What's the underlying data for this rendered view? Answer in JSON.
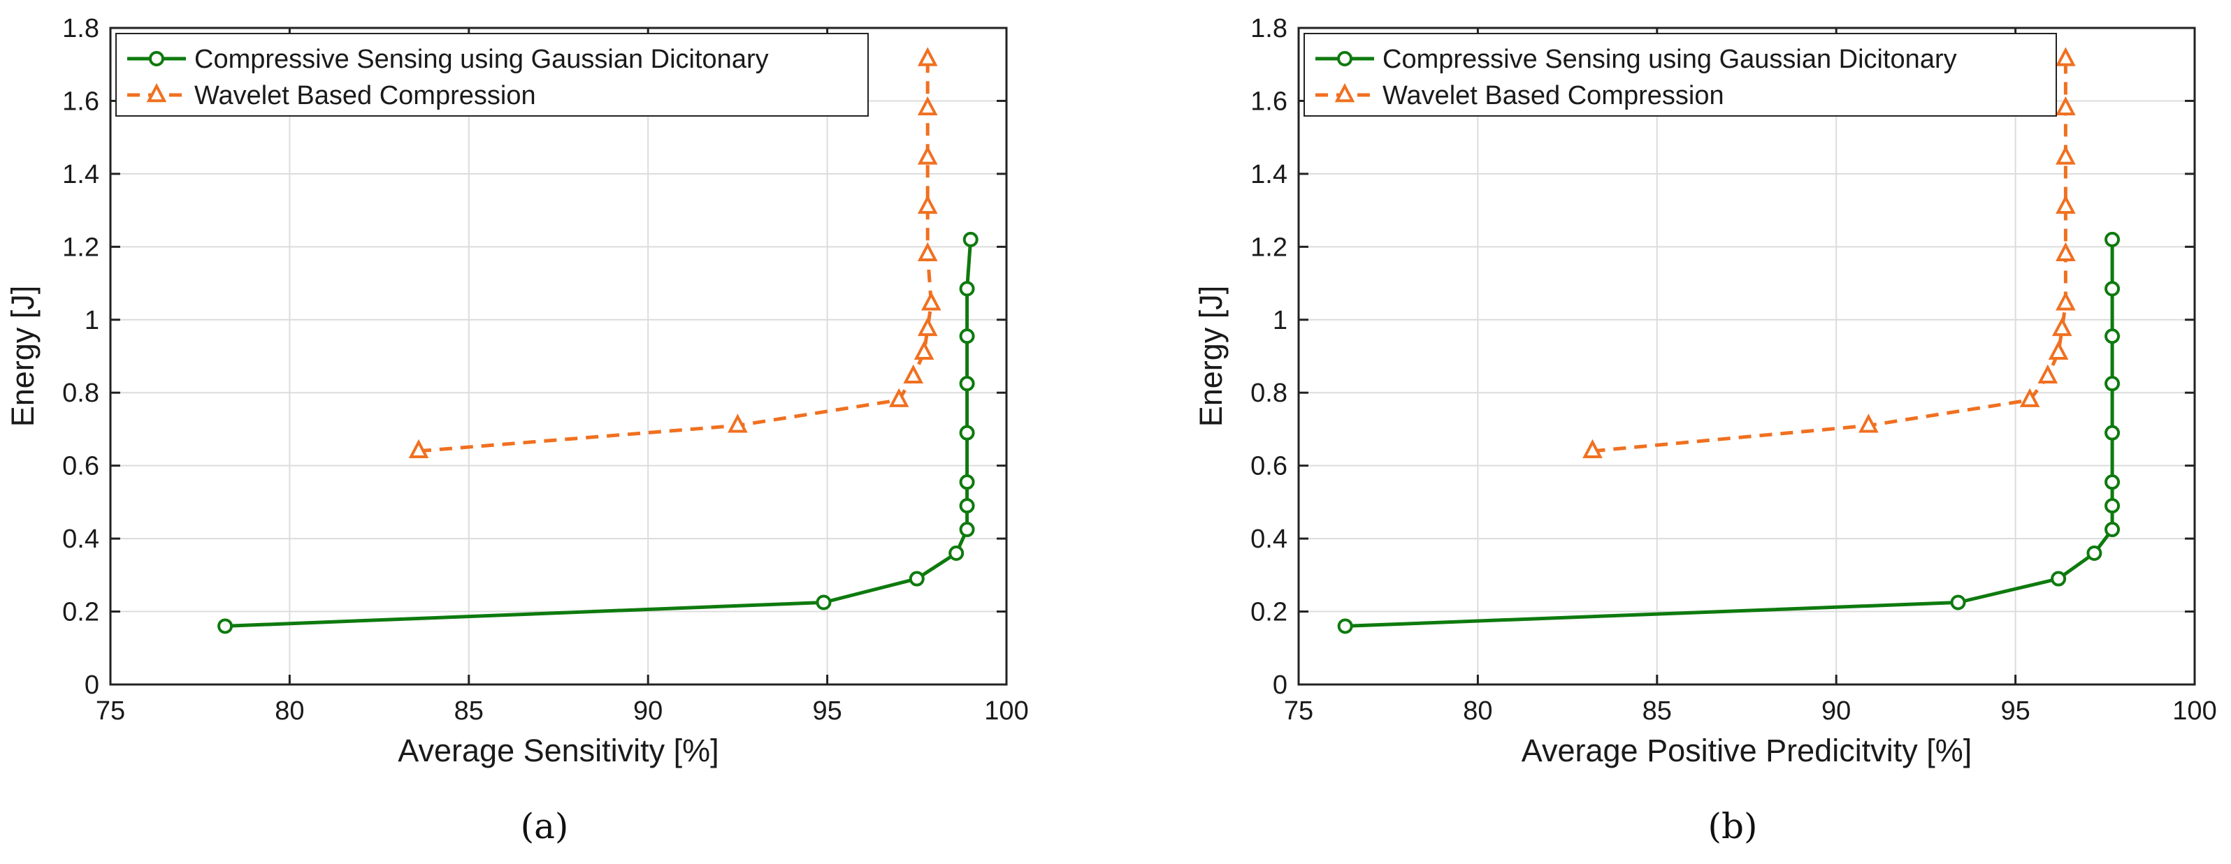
{
  "colors": {
    "cs_series": "#0e7a0e",
    "wavelet_series": "#f07020"
  },
  "chart_data": [
    {
      "type": "line",
      "caption": "(a)",
      "xlabel": "Average Sensitivity [%]",
      "ylabel": "Energy [J]",
      "xlim": [
        75,
        100
      ],
      "ylim": [
        0,
        1.8
      ],
      "xticks": [
        75,
        80,
        85,
        90,
        95,
        100
      ],
      "yticks": [
        0,
        0.2,
        0.4,
        0.6,
        0.8,
        1,
        1.2,
        1.4,
        1.6,
        1.8
      ],
      "xtick_labels": [
        "75",
        "80",
        "85",
        "90",
        "95",
        "100"
      ],
      "ytick_labels": [
        "0",
        "0.2",
        "0.4",
        "0.6",
        "0.8",
        "1",
        "1.2",
        "1.4",
        "1.6",
        "1.8"
      ],
      "grid": true,
      "legend_position": "top-left",
      "series": [
        {
          "name": "Compressive Sensing using Gaussian Dicitonary",
          "marker": "circle",
          "line": "solid",
          "color_key": "cs_series",
          "x": [
            78.2,
            94.9,
            97.5,
            98.6,
            98.9,
            98.9,
            98.9,
            98.9,
            98.9,
            98.9,
            98.9,
            99.0
          ],
          "y": [
            0.16,
            0.225,
            0.29,
            0.36,
            0.425,
            0.49,
            0.555,
            0.69,
            0.825,
            0.955,
            1.085,
            1.22
          ]
        },
        {
          "name": "Wavelet Based Compression",
          "marker": "triangle",
          "line": "dashed",
          "color_key": "wavelet_series",
          "x": [
            83.6,
            92.5,
            97.0,
            97.4,
            97.7,
            97.8,
            97.9,
            97.8,
            97.8,
            97.8,
            97.8,
            97.8
          ],
          "y": [
            0.64,
            0.71,
            0.78,
            0.845,
            0.91,
            0.975,
            1.045,
            1.18,
            1.31,
            1.445,
            1.58,
            1.715
          ]
        }
      ]
    },
    {
      "type": "line",
      "caption": "(b)",
      "xlabel": "Average Positive Predicitvity [%]",
      "ylabel": "Energy [J]",
      "xlim": [
        75,
        100
      ],
      "ylim": [
        0,
        1.8
      ],
      "xticks": [
        75,
        80,
        85,
        90,
        95,
        100
      ],
      "yticks": [
        0,
        0.2,
        0.4,
        0.6,
        0.8,
        1,
        1.2,
        1.4,
        1.6,
        1.8
      ],
      "xtick_labels": [
        "75",
        "80",
        "85",
        "90",
        "95",
        "100"
      ],
      "ytick_labels": [
        "0",
        "0.2",
        "0.4",
        "0.6",
        "0.8",
        "1",
        "1.2",
        "1.4",
        "1.6",
        "1.8"
      ],
      "grid": true,
      "legend_position": "top-left",
      "series": [
        {
          "name": "Compressive Sensing using Gaussian Dicitonary",
          "marker": "circle",
          "line": "solid",
          "color_key": "cs_series",
          "x": [
            76.3,
            93.4,
            96.2,
            97.2,
            97.7,
            97.7,
            97.7,
            97.7,
            97.7,
            97.7,
            97.7,
            97.7
          ],
          "y": [
            0.16,
            0.225,
            0.29,
            0.36,
            0.425,
            0.49,
            0.555,
            0.69,
            0.825,
            0.955,
            1.085,
            1.22
          ]
        },
        {
          "name": "Wavelet Based Compression",
          "marker": "triangle",
          "line": "dashed",
          "color_key": "wavelet_series",
          "x": [
            83.2,
            90.9,
            95.4,
            95.9,
            96.2,
            96.3,
            96.4,
            96.4,
            96.4,
            96.4,
            96.4,
            96.4
          ],
          "y": [
            0.64,
            0.71,
            0.78,
            0.845,
            0.91,
            0.975,
            1.045,
            1.18,
            1.31,
            1.445,
            1.58,
            1.715
          ]
        }
      ]
    }
  ]
}
